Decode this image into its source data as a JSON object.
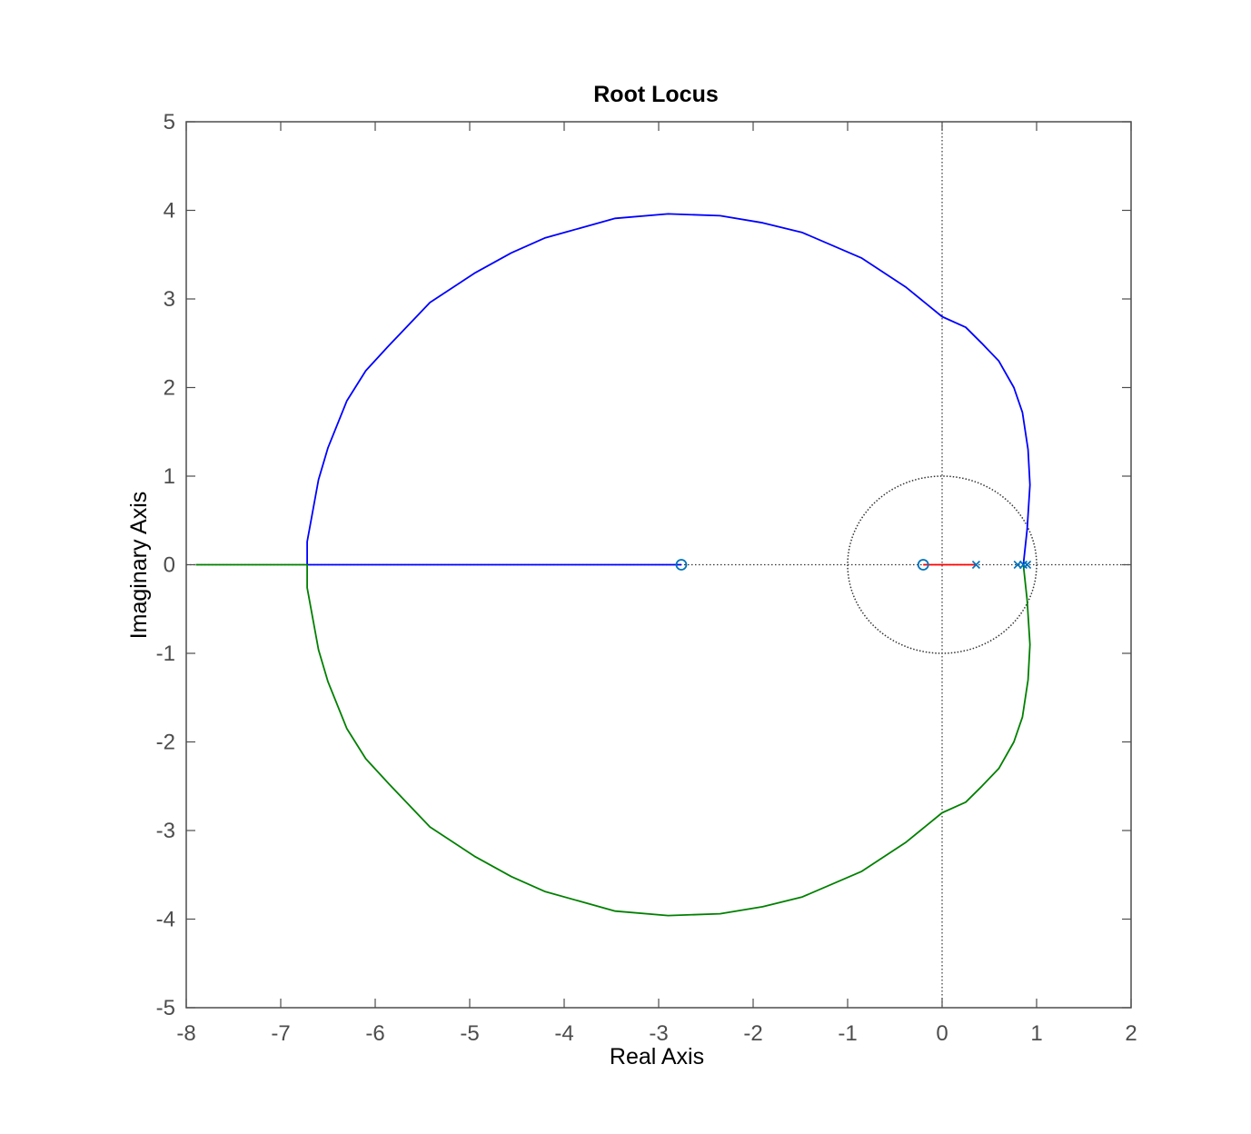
{
  "chart_data": {
    "type": "line",
    "title": "Root Locus",
    "xlabel": "Real Axis",
    "ylabel": "Imaginary Axis",
    "xlim": [
      -8,
      2
    ],
    "ylim": [
      -5,
      5
    ],
    "xticks": [
      -8,
      -7,
      -6,
      -5,
      -4,
      -3,
      -2,
      -1,
      0,
      1,
      2
    ],
    "yticks": [
      -5,
      -4,
      -3,
      -2,
      -1,
      0,
      1,
      2,
      3,
      4,
      5
    ],
    "grid": false,
    "unit_circle": {
      "center": [
        0,
        0
      ],
      "radius": 1,
      "style": "dotted"
    },
    "reference_lines": [
      {
        "axis": "x",
        "value": 0,
        "style": "dotted"
      },
      {
        "axis": "y",
        "value": 0,
        "style": "dotted"
      }
    ],
    "poles": [
      [
        0.36,
        0
      ],
      [
        0.8,
        0
      ],
      [
        0.86,
        0
      ],
      [
        0.9,
        0
      ]
    ],
    "zeros": [
      [
        -2.76,
        0
      ],
      [
        -0.2,
        0
      ]
    ],
    "colors": {
      "branch_upper": "#0000ff",
      "branch_lower": "#008000",
      "branch_real": "#ff0000",
      "markers": "#0072bd",
      "axes": "#4d4d4d"
    },
    "series": [
      {
        "color": "#0000ff",
        "points": [
          [
            0.86,
            0
          ],
          [
            0.9,
            0.4
          ],
          [
            0.93,
            0.9
          ],
          [
            0.91,
            1.3
          ],
          [
            0.85,
            1.72
          ],
          [
            0.76,
            2.0
          ],
          [
            0.6,
            2.3
          ],
          [
            0.42,
            2.5
          ],
          [
            0.25,
            2.68
          ],
          [
            0,
            2.8
          ],
          [
            -0.38,
            3.13
          ],
          [
            -0.85,
            3.46
          ],
          [
            -1.48,
            3.75
          ],
          [
            -1.9,
            3.86
          ],
          [
            -2.35,
            3.94
          ],
          [
            -2.9,
            3.96
          ],
          [
            -3.46,
            3.91
          ],
          [
            -4.2,
            3.69
          ],
          [
            -4.56,
            3.52
          ],
          [
            -4.95,
            3.29
          ],
          [
            -5.42,
            2.96
          ],
          [
            -5.85,
            2.48
          ],
          [
            -6.1,
            2.19
          ],
          [
            -6.3,
            1.85
          ],
          [
            -6.5,
            1.32
          ],
          [
            -6.6,
            0.96
          ],
          [
            -6.72,
            0.26
          ],
          [
            -6.72,
            0
          ],
          [
            -2.76,
            0
          ]
        ]
      },
      {
        "color": "#008000",
        "points": [
          [
            0.86,
            0
          ],
          [
            0.9,
            -0.4
          ],
          [
            0.93,
            -0.9
          ],
          [
            0.91,
            -1.3
          ],
          [
            0.85,
            -1.72
          ],
          [
            0.76,
            -2.0
          ],
          [
            0.6,
            -2.3
          ],
          [
            0.42,
            -2.5
          ],
          [
            0.25,
            -2.68
          ],
          [
            0,
            -2.8
          ],
          [
            -0.38,
            -3.13
          ],
          [
            -0.85,
            -3.46
          ],
          [
            -1.48,
            -3.75
          ],
          [
            -1.9,
            -3.86
          ],
          [
            -2.35,
            -3.94
          ],
          [
            -2.9,
            -3.96
          ],
          [
            -3.46,
            -3.91
          ],
          [
            -4.2,
            -3.69
          ],
          [
            -4.56,
            -3.52
          ],
          [
            -4.95,
            -3.29
          ],
          [
            -5.42,
            -2.96
          ],
          [
            -5.85,
            -2.48
          ],
          [
            -6.1,
            -2.19
          ],
          [
            -6.3,
            -1.85
          ],
          [
            -6.5,
            -1.32
          ],
          [
            -6.6,
            -0.96
          ],
          [
            -6.72,
            -0.26
          ],
          [
            -6.72,
            0
          ],
          [
            -7.9,
            0
          ]
        ]
      },
      {
        "color": "#ff0000",
        "points": [
          [
            0.36,
            0
          ],
          [
            -0.2,
            0
          ]
        ]
      }
    ]
  }
}
